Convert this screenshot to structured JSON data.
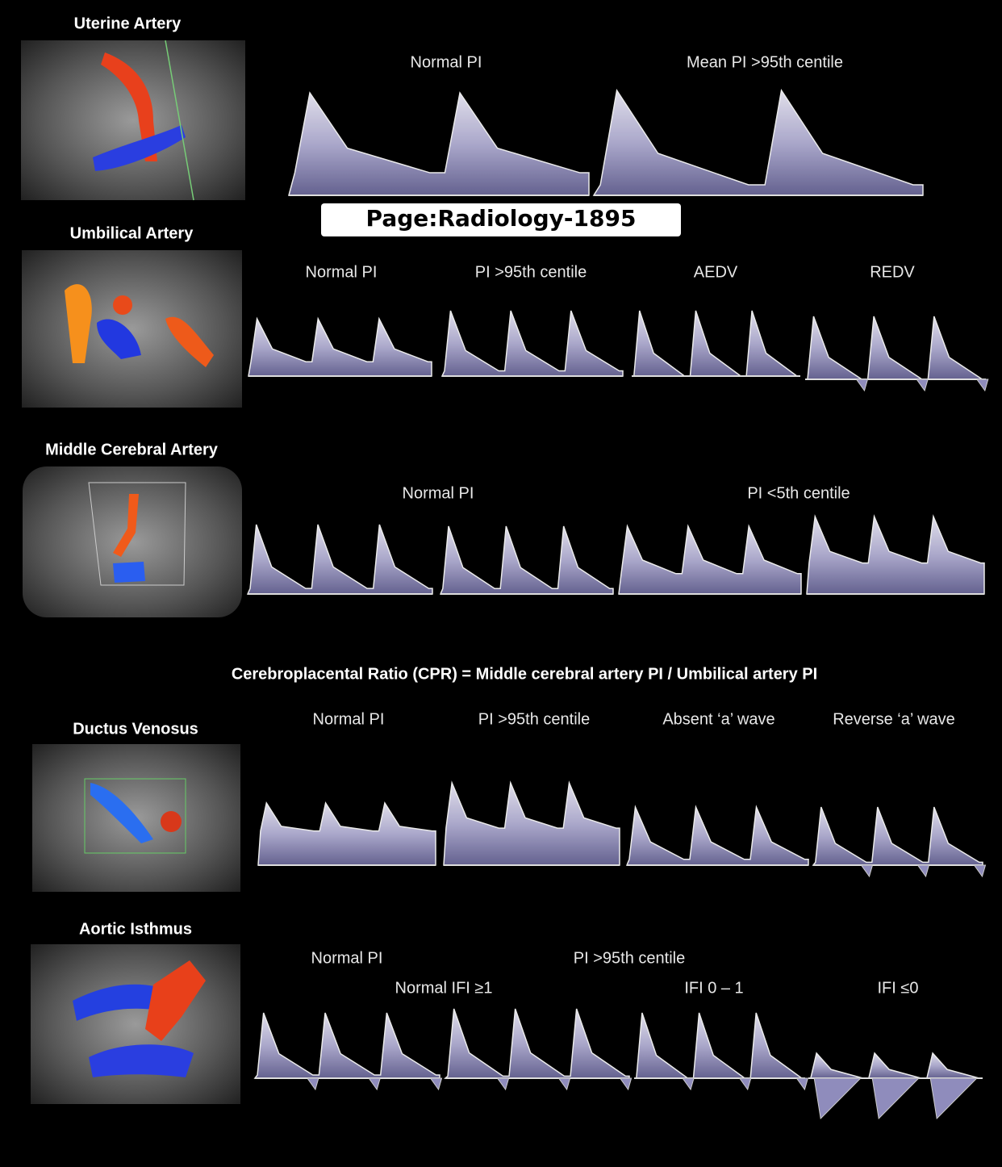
{
  "watermark": "Page:Radiology-1895",
  "formula": "Cerebroplacental Ratio (CPR) = Middle cerebral artery PI / Umbilical artery PI",
  "sections": [
    {
      "title": "Uterine Artery",
      "labels": [
        "Normal PI",
        "Mean PI  >95th centile"
      ]
    },
    {
      "title": "Umbilical Artery",
      "labels": [
        "Normal PI",
        "PI  >95th centile",
        "AEDV",
        "REDV"
      ]
    },
    {
      "title": "Middle Cerebral Artery",
      "labels": [
        "Normal PI",
        "PI  <5th centile"
      ]
    },
    {
      "title": "Ductus Venosus",
      "labels": [
        "Normal PI",
        "PI  >95th centile",
        "Absent ‘a’ wave",
        "Reverse ‘a’ wave"
      ]
    },
    {
      "title": "Aortic Isthmus",
      "labels": [
        "Normal PI",
        "PI  >95th centile",
        "Normal IFI ≥1",
        "IFI 0 – 1",
        "IFI ≤0"
      ]
    }
  ]
}
